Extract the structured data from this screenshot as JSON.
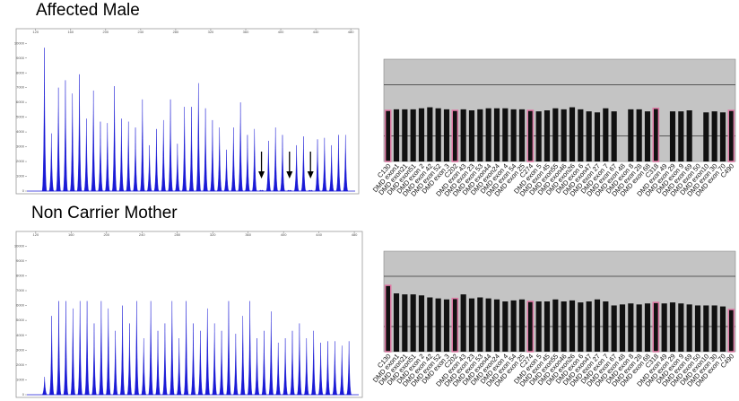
{
  "chart_data": [
    {
      "type": "peaks",
      "title": "Affected Male",
      "color": "#1a1ad6",
      "x": [
        130,
        138,
        146,
        154,
        162,
        170,
        178,
        186,
        194,
        202,
        210,
        218,
        226,
        234,
        242,
        250,
        258,
        266,
        274,
        282,
        290,
        298,
        306,
        314,
        322,
        330,
        338,
        346,
        354,
        362,
        370,
        378,
        386,
        394,
        402,
        410,
        418,
        426,
        434,
        442,
        450,
        458,
        466,
        474
      ],
      "values": [
        9700,
        3900,
        7000,
        7500,
        6600,
        7900,
        4900,
        6800,
        4700,
        4600,
        7100,
        4900,
        4700,
        4300,
        6200,
        3100,
        4200,
        4800,
        6200,
        3200,
        5700,
        5700,
        7300,
        5600,
        4800,
        4300,
        2800,
        4300,
        6000,
        3800,
        4200,
        0,
        3400,
        4300,
        3800,
        0,
        3100,
        3700,
        0,
        3500,
        3600,
        3100,
        3800,
        3800
      ],
      "xlim": [
        110,
        485
      ],
      "xticks": [
        120,
        160,
        200,
        240,
        280,
        320,
        360,
        400,
        440,
        480
      ],
      "ylim": [
        0,
        10500
      ],
      "yticks": [
        0,
        1000,
        2000,
        3000,
        4000,
        5000,
        6000,
        7000,
        8000,
        9000,
        10000
      ]
    },
    {
      "type": "bar",
      "color": "#111111",
      "control_color": "#e07aa6",
      "background": "#c4c4c4",
      "categories": [
        "C130",
        "DMD exon1",
        "DMD exon21",
        "DMD exon51",
        "DMD exon 2",
        "DMD exon 42",
        "DMD exon 52",
        "DMD exon 3",
        "C202",
        "DMD exon 43",
        "DMD exon 23",
        "DMD exon 53",
        "DMD exon44",
        "DMD exon24",
        "DMD exon 4",
        "DMD exon 54",
        "DMD exon 25",
        "C274",
        "DMD exon 5",
        "DMD exon 45",
        "DMD exon55",
        "DMD exon46",
        "DMD exon26",
        "DMD exon 6",
        "DMD exon47",
        "DMD exon 27",
        "DMD exon 7",
        "DMD exon 67",
        "DMD exon 48",
        "DMD exon 8",
        "DMD exon 28",
        "DMD exon 68",
        "C318",
        "DMD exon 49",
        "DMD exon 29",
        "DMD exon 9",
        "DMD exon 69",
        "DMD exon 50",
        "DMD exon10",
        "DMD exon 30",
        "DMD exon 70",
        "C490"
      ],
      "values": [
        1.0,
        1.02,
        1.02,
        1.02,
        1.04,
        1.06,
        1.04,
        1.02,
        1.0,
        1.02,
        1.0,
        1.02,
        1.04,
        1.04,
        1.04,
        1.02,
        1.02,
        1.0,
        0.98,
        1.0,
        1.04,
        1.02,
        1.06,
        1.02,
        0.98,
        0.96,
        1.04,
        0.98,
        0,
        1.02,
        1.02,
        0.98,
        1.04,
        0,
        0.98,
        0.98,
        1.0,
        0,
        0.96,
        0.98,
        0.96,
        1.0
      ],
      "ylim": [
        0,
        2
      ],
      "grid_lines": [
        0.5,
        1.5
      ]
    },
    {
      "type": "peaks",
      "title": "Non Carrier Mother",
      "color": "#1a1ad6",
      "x": [
        130,
        138,
        146,
        154,
        162,
        170,
        178,
        186,
        194,
        202,
        210,
        218,
        226,
        234,
        242,
        250,
        258,
        266,
        274,
        282,
        290,
        298,
        306,
        314,
        322,
        330,
        338,
        346,
        354,
        362,
        370,
        378,
        386,
        394,
        402,
        410,
        418,
        426,
        434,
        442,
        450,
        458,
        466,
        474
      ],
      "values": [
        1200,
        5300,
        6300,
        6300,
        5800,
        6300,
        6300,
        4800,
        6300,
        5800,
        4300,
        6000,
        4800,
        6300,
        3800,
        6300,
        4300,
        4800,
        6300,
        3800,
        6300,
        4800,
        4300,
        5800,
        4800,
        4300,
        6300,
        4100,
        5300,
        6300,
        3800,
        4300,
        5600,
        3500,
        3800,
        4300,
        4800,
        3800,
        4300,
        3500,
        3600,
        3600,
        3300,
        3600
      ],
      "xlim": [
        110,
        485
      ],
      "xticks": [
        120,
        160,
        200,
        240,
        280,
        320,
        360,
        400,
        440,
        480
      ],
      "ylim": [
        0,
        10500
      ],
      "yticks": [
        0,
        1000,
        2000,
        3000,
        4000,
        5000,
        6000,
        7000,
        8000,
        9000,
        10000
      ]
    },
    {
      "type": "bar",
      "color": "#111111",
      "control_color": "#e07aa6",
      "background": "#c4c4c4",
      "categories": [
        "C130",
        "DMD exon1",
        "DMD exon21",
        "DMD exon51",
        "DMD exon 2",
        "DMD exon 42",
        "DMD exon 52",
        "DMD exon 3",
        "C202",
        "DMD exon 43",
        "DMD exon 23",
        "DMD exon 53",
        "DMD exon44",
        "DMD exon24",
        "DMD exon 4",
        "DMD exon 54",
        "DMD exon 25",
        "C274",
        "DMD exon 5",
        "DMD exon 45",
        "DMD exon55",
        "DMD exon46",
        "DMD exon26",
        "DMD exon 6",
        "DMD exon47",
        "DMD exon 27",
        "DMD exon 7",
        "DMD exon 67",
        "DMD exon 48",
        "DMD exon 8",
        "DMD exon 28",
        "DMD exon 68",
        "C318",
        "DMD exon 49",
        "DMD exon 29",
        "DMD exon 9",
        "DMD exon 69",
        "DMD exon 50",
        "DMD exon10",
        "DMD exon 30",
        "DMD exon 70",
        "C490"
      ],
      "values": [
        1.32,
        1.16,
        1.14,
        1.14,
        1.12,
        1.08,
        1.06,
        1.04,
        1.06,
        1.14,
        1.06,
        1.08,
        1.06,
        1.04,
        1.0,
        1.02,
        1.04,
        1.0,
        1.0,
        1.0,
        1.04,
        1.0,
        1.02,
        0.98,
        1.0,
        1.04,
        1.0,
        0.92,
        0.94,
        0.96,
        0.94,
        0.96,
        0.98,
        0.96,
        0.98,
        0.96,
        0.94,
        0.92,
        0.92,
        0.92,
        0.9,
        0.84
      ],
      "ylim": [
        0,
        2
      ],
      "grid_lines": [
        0.5,
        1.5
      ]
    }
  ]
}
